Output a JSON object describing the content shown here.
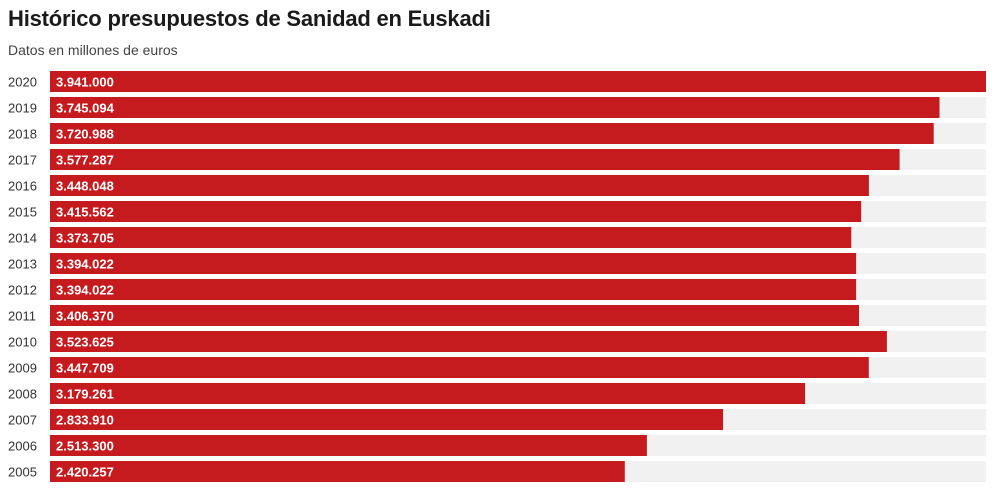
{
  "chart": {
    "title": "Histórico presupuestos de Sanidad en Euskadi",
    "subtitle": "Datos en millones de euros"
  },
  "colors": {
    "bar": "#c51b1e",
    "track": "#f1f1f1",
    "value_label": "#ffffff",
    "category_label": "#333333"
  },
  "chart_data": {
    "type": "bar",
    "orientation": "horizontal",
    "title": "Histórico presupuestos de Sanidad en Euskadi",
    "subtitle": "Datos en millones de euros",
    "categories": [
      "2020",
      "2019",
      "2018",
      "2017",
      "2016",
      "2015",
      "2014",
      "2013",
      "2012",
      "2011",
      "2010",
      "2009",
      "2008",
      "2007",
      "2006",
      "2005"
    ],
    "values": [
      3941000,
      3745094,
      3720988,
      3577287,
      3448048,
      3415562,
      3373705,
      3394022,
      3394022,
      3406370,
      3523625,
      3447709,
      3179261,
      2833910,
      2513300,
      2420257
    ],
    "value_labels": [
      "3.941.000",
      "3.745.094",
      "3.720.988",
      "3.577.287",
      "3.448.048",
      "3.415.562",
      "3.373.705",
      "3.394.022",
      "3.394.022",
      "3.406.370",
      "3.523.625",
      "3.447.709",
      "3.179.261",
      "2.833.910",
      "2.513.300",
      "2.420.257"
    ],
    "xlim": [
      0,
      3941000
    ],
    "grid": false,
    "legend": "none"
  }
}
